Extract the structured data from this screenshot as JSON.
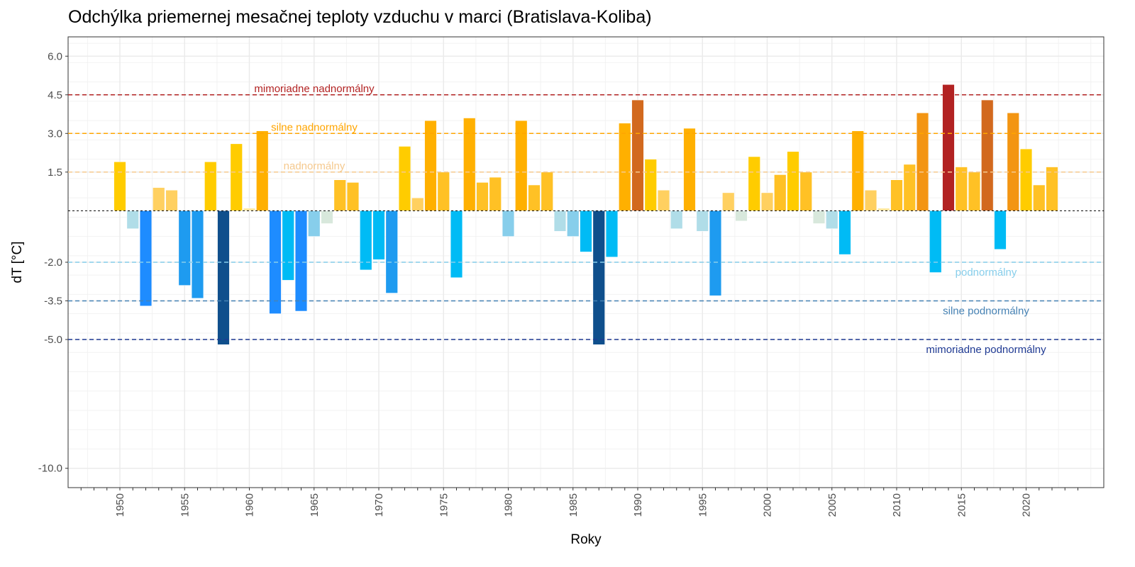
{
  "chart_data": {
    "type": "bar",
    "title": "Odchýlka priemernej mesačnej teploty vzduchu v marci (Bratislava-Koliba)",
    "xlabel": "Roky",
    "ylabel": "dT [°C]",
    "xlim": [
      1946,
      2026
    ],
    "ylim": [
      -10.75,
      6.75
    ],
    "grid": true,
    "x_ticks": [
      1950,
      1955,
      1960,
      1965,
      1970,
      1975,
      1980,
      1985,
      1990,
      1995,
      2000,
      2005,
      2010,
      2015,
      2020
    ],
    "y_ticks": [
      6.0,
      4.5,
      3.0,
      1.5,
      -2.0,
      -3.5,
      -5.0,
      -10.0
    ],
    "y_tick_labels": [
      "6.0",
      "4.5",
      "3.0",
      "1.5",
      "-2.0",
      "-3.5",
      "-5.0",
      "-10.0"
    ],
    "x": [
      1950,
      1951,
      1952,
      1953,
      1954,
      1955,
      1956,
      1957,
      1958,
      1959,
      1960,
      1961,
      1962,
      1963,
      1964,
      1965,
      1966,
      1967,
      1968,
      1969,
      1970,
      1971,
      1972,
      1973,
      1974,
      1975,
      1976,
      1977,
      1978,
      1979,
      1980,
      1981,
      1982,
      1983,
      1984,
      1985,
      1986,
      1987,
      1988,
      1989,
      1990,
      1991,
      1992,
      1993,
      1994,
      1995,
      1996,
      1997,
      1998,
      1999,
      2000,
      2001,
      2002,
      2003,
      2004,
      2005,
      2006,
      2007,
      2008,
      2009,
      2010,
      2011,
      2012,
      2013,
      2014,
      2015,
      2016,
      2017,
      2018,
      2019,
      2020,
      2021,
      2022
    ],
    "values": [
      1.9,
      -0.7,
      -3.7,
      0.9,
      0.8,
      -2.9,
      -3.4,
      1.9,
      -5.2,
      2.6,
      0.1,
      3.1,
      -4.0,
      -2.7,
      -3.9,
      -1.0,
      -0.5,
      1.2,
      1.1,
      -2.3,
      -1.9,
      -3.2,
      2.5,
      0.5,
      3.5,
      1.5,
      -2.6,
      3.6,
      1.1,
      1.3,
      -1.0,
      3.5,
      1.0,
      1.5,
      -0.8,
      -1.0,
      -1.6,
      -5.2,
      -1.8,
      3.4,
      4.3,
      2.0,
      0.8,
      -0.7,
      3.2,
      -0.8,
      -3.3,
      0.7,
      -0.4,
      2.1,
      0.7,
      1.4,
      2.3,
      1.5,
      -0.5,
      -0.7,
      -1.7,
      3.1,
      0.8,
      0.1,
      1.2,
      1.8,
      3.8,
      -2.4,
      4.9,
      1.7,
      1.5,
      4.3,
      -1.5,
      3.8,
      2.4,
      1.0,
      1.7
    ],
    "reference_lines": [
      {
        "value": 4.5,
        "label": "mimoriadne nadnormálny",
        "color": "#b22222"
      },
      {
        "value": 3.0,
        "label": "silne nadnormálny",
        "color": "#ffa500"
      },
      {
        "value": 1.5,
        "label": "nadnormálny",
        "color": "#f5c98e"
      },
      {
        "value": 0,
        "label": "",
        "color": "#000000"
      },
      {
        "value": -2.0,
        "label": "podnormálny",
        "color": "#87ceeb"
      },
      {
        "value": -3.5,
        "label": "silne podnormálny",
        "color": "#4682b4"
      },
      {
        "value": -5.0,
        "label": "mimoriadne podnormálny",
        "color": "#1f3a93"
      }
    ],
    "colors": {
      "extreme_warm": "#b22222",
      "very_warm_high": "#d2691e",
      "very_warm": "#f39512",
      "warm_strong": "#ffb000",
      "warm": "#ffcc00",
      "mild_warm": "#ffc125",
      "slight_warm": "#ffd060",
      "near_zero_warm": "#ffe9a0",
      "near_zero_cold": "#d8e8dc",
      "slight_cold": "#b0dde8",
      "mild_cold": "#87ceeb",
      "cold": "#00bbf5",
      "cold_strong": "#1e9bf0",
      "very_cold": "#1e8cff",
      "extreme_cold": "#0f4f8c"
    }
  }
}
